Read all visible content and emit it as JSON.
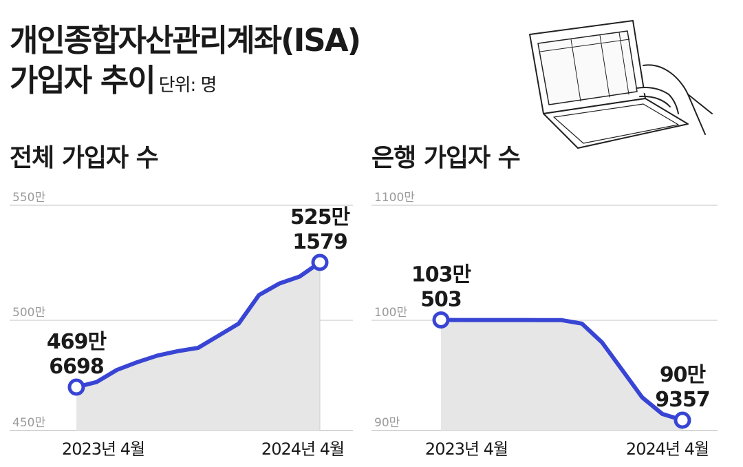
{
  "title": {
    "line1": "개인종합자산관리계좌(ISA)",
    "line2": "가입자 추이",
    "unit": "단위: 명"
  },
  "chart_data": [
    {
      "type": "area",
      "title": "전체 가입자 수",
      "x": [
        "2023년 4월",
        "",
        "",
        "",
        "",
        "",
        "",
        "",
        "",
        "",
        "",
        "",
        "2024년 4월"
      ],
      "values": [
        4696698,
        4720000,
        4775000,
        4810000,
        4840000,
        4860000,
        4875000,
        4930000,
        4985000,
        5110000,
        5160000,
        5190000,
        5251579
      ],
      "x_tick_labels": [
        "2023년 4월",
        "2024년 4월"
      ],
      "y_ticks": [
        4500000,
        5000000,
        5500000
      ],
      "y_tick_labels": [
        "450만",
        "500만",
        "550만"
      ],
      "ylim": [
        4500000,
        5500000
      ],
      "y_scale": "segmented",
      "grid": true,
      "annotations": [
        {
          "index": 0,
          "line1": "469만",
          "line2": "6698"
        },
        {
          "index": 12,
          "line1": "525만",
          "line2": "1579"
        }
      ],
      "line_color": "#3845d4",
      "fill_color": "#e6e6e6"
    },
    {
      "type": "area",
      "title": "은행 가입자 수",
      "x": [
        "2023년 4월",
        "",
        "",
        "",
        "",
        "",
        "",
        "",
        "",
        "",
        "",
        "",
        "2024년 4월"
      ],
      "values": [
        1030503,
        1026000,
        1021000,
        1022000,
        1021000,
        1017000,
        1010000,
        997000,
        980000,
        955000,
        930000,
        915000,
        909357
      ],
      "x_tick_labels": [
        "2023년 4월",
        "2024년 4월"
      ],
      "y_ticks": [
        900000,
        1000000,
        11000000
      ],
      "y_tick_labels": [
        "90만",
        "100만",
        "1100만"
      ],
      "ylim": [
        900000,
        11000000
      ],
      "y_scale": "segmented",
      "grid": true,
      "annotations": [
        {
          "index": 0,
          "line1": "103만",
          "line2": "503"
        },
        {
          "index": 12,
          "line1": "90만",
          "line2": "9357"
        }
      ],
      "line_color": "#3845d4",
      "fill_color": "#e6e6e6"
    }
  ]
}
